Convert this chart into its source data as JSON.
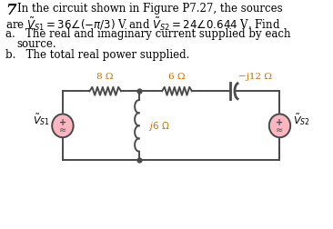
{
  "bg_color": "#ffffff",
  "text_color": "#000000",
  "circuit_color": "#4a4a4a",
  "label_color": "#c87000",
  "source_fill": "#ffb6c1",
  "r1_label": "8 Ω",
  "r2_label": "6 Ω",
  "r3_label": "−j12 Ω",
  "r4_label": "j6 Ω",
  "vs1_label": "vs1",
  "vs2_label": "vs2",
  "figsize": [
    3.66,
    2.53
  ],
  "dpi": 100
}
